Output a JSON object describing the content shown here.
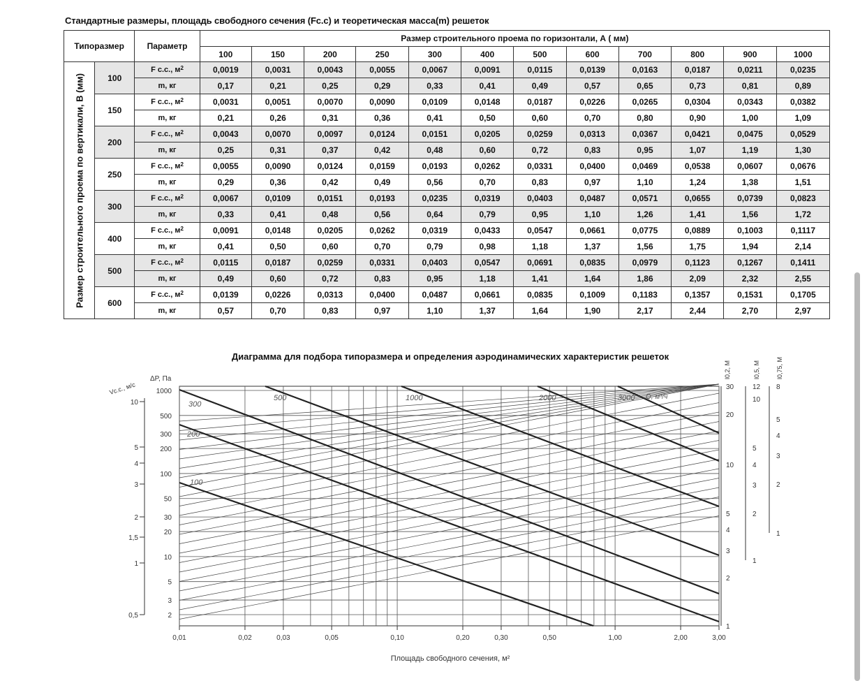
{
  "title": "Стандартные размеры, площадь свободного сечения (Fc.c) и теоретическая масса(m) решеток",
  "table": {
    "col_typesize": "Типоразмер",
    "col_param": "Параметр",
    "horizontal_header": "Размер строительного проема по горизонтали, А ( мм)",
    "vertical_header": "Размер строительного проема по вертикали, В (мм)",
    "widths": [
      "100",
      "150",
      "200",
      "250",
      "300",
      "400",
      "500",
      "600",
      "700",
      "800",
      "900",
      "1000"
    ],
    "param_f": "F c.c., м",
    "param_f_sup": "2",
    "param_m": "m, кг",
    "rows": [
      {
        "size": "100",
        "f": [
          "0,0019",
          "0,0031",
          "0,0043",
          "0,0055",
          "0,0067",
          "0,0091",
          "0,0115",
          "0,0139",
          "0,0163",
          "0,0187",
          "0,0211",
          "0,0235"
        ],
        "m": [
          "0,17",
          "0,21",
          "0,25",
          "0,29",
          "0,33",
          "0,41",
          "0,49",
          "0,57",
          "0,65",
          "0,73",
          "0,81",
          "0,89"
        ]
      },
      {
        "size": "150",
        "f": [
          "0,0031",
          "0,0051",
          "0,0070",
          "0,0090",
          "0,0109",
          "0,0148",
          "0,0187",
          "0,0226",
          "0,0265",
          "0,0304",
          "0,0343",
          "0,0382"
        ],
        "m": [
          "0,21",
          "0,26",
          "0,31",
          "0,36",
          "0,41",
          "0,50",
          "0,60",
          "0,70",
          "0,80",
          "0,90",
          "1,00",
          "1,09"
        ]
      },
      {
        "size": "200",
        "f": [
          "0,0043",
          "0,0070",
          "0,0097",
          "0,0124",
          "0,0151",
          "0,0205",
          "0,0259",
          "0,0313",
          "0,0367",
          "0,0421",
          "0,0475",
          "0,0529"
        ],
        "m": [
          "0,25",
          "0,31",
          "0,37",
          "0,42",
          "0,48",
          "0,60",
          "0,72",
          "0,83",
          "0,95",
          "1,07",
          "1,19",
          "1,30"
        ]
      },
      {
        "size": "250",
        "f": [
          "0,0055",
          "0,0090",
          "0,0124",
          "0,0159",
          "0,0193",
          "0,0262",
          "0,0331",
          "0,0400",
          "0,0469",
          "0,0538",
          "0,0607",
          "0,0676"
        ],
        "m": [
          "0,29",
          "0,36",
          "0,42",
          "0,49",
          "0,56",
          "0,70",
          "0,83",
          "0,97",
          "1,10",
          "1,24",
          "1,38",
          "1,51"
        ]
      },
      {
        "size": "300",
        "f": [
          "0,0067",
          "0,0109",
          "0,0151",
          "0,0193",
          "0,0235",
          "0,0319",
          "0,0403",
          "0,0487",
          "0,0571",
          "0,0655",
          "0,0739",
          "0,0823"
        ],
        "m": [
          "0,33",
          "0,41",
          "0,48",
          "0,56",
          "0,64",
          "0,79",
          "0,95",
          "1,10",
          "1,26",
          "1,41",
          "1,56",
          "1,72"
        ]
      },
      {
        "size": "400",
        "f": [
          "0,0091",
          "0,0148",
          "0,0205",
          "0,0262",
          "0,0319",
          "0,0433",
          "0,0547",
          "0,0661",
          "0,0775",
          "0,0889",
          "0,1003",
          "0,1117"
        ],
        "m": [
          "0,41",
          "0,50",
          "0,60",
          "0,70",
          "0,79",
          "0,98",
          "1,18",
          "1,37",
          "1,56",
          "1,75",
          "1,94",
          "2,14"
        ]
      },
      {
        "size": "500",
        "f": [
          "0,0115",
          "0,0187",
          "0,0259",
          "0,0331",
          "0,0403",
          "0,0547",
          "0,0691",
          "0,0835",
          "0,0979",
          "0,1123",
          "0,1267",
          "0,1411"
        ],
        "m": [
          "0,49",
          "0,60",
          "0,72",
          "0,83",
          "0,95",
          "1,18",
          "1,41",
          "1,64",
          "1,86",
          "2,09",
          "2,32",
          "2,55"
        ]
      },
      {
        "size": "600",
        "f": [
          "0,0139",
          "0,0226",
          "0,0313",
          "0,0400",
          "0,0487",
          "0,0661",
          "0,0835",
          "0,1009",
          "0,1183",
          "0,1357",
          "0,1531",
          "0,1705"
        ],
        "m": [
          "0,57",
          "0,70",
          "0,83",
          "0,97",
          "1,10",
          "1,37",
          "1,64",
          "1,90",
          "2,17",
          "2,44",
          "2,70",
          "2,97"
        ]
      }
    ]
  },
  "diagram": {
    "title": "Диаграмма для подбора типоразмера и определения аэродинамических характеристик решеток",
    "xlabel": "Площадь свободного сечения, м²",
    "v_axis_label": "Vс.с., м/с",
    "dp_axis_label": "ΔP, Па",
    "l02_label": "l0,2, М",
    "l05_label": "l0,5, М",
    "l075_label": "l0,75, М",
    "q_label": "Q, м³/ч",
    "x_ticks": [
      "0,01",
      "0,02",
      "0,03",
      "0,05",
      "0,10",
      "0,20",
      "0,30",
      "0,50",
      "1,00",
      "2,00",
      "3,00"
    ],
    "v_ticks": [
      "10",
      "5",
      "4",
      "3",
      "2",
      "1,5",
      "1",
      "0,5"
    ],
    "dp_ticks": [
      "1000",
      "500",
      "300",
      "200",
      "100",
      "50",
      "30",
      "20",
      "10",
      "5",
      "3",
      "2"
    ],
    "l02_ticks": [
      "30",
      "20",
      "10",
      "5",
      "4",
      "3",
      "2",
      "1"
    ],
    "l05_ticks": [
      "12",
      "10",
      "5",
      "4",
      "3",
      "2",
      "1"
    ],
    "l075_ticks": [
      "8",
      "5",
      "4",
      "3",
      "2",
      "1"
    ],
    "bold_labels": [
      "100",
      "200",
      "300",
      "500",
      "1000",
      "2000",
      "3000"
    ]
  }
}
